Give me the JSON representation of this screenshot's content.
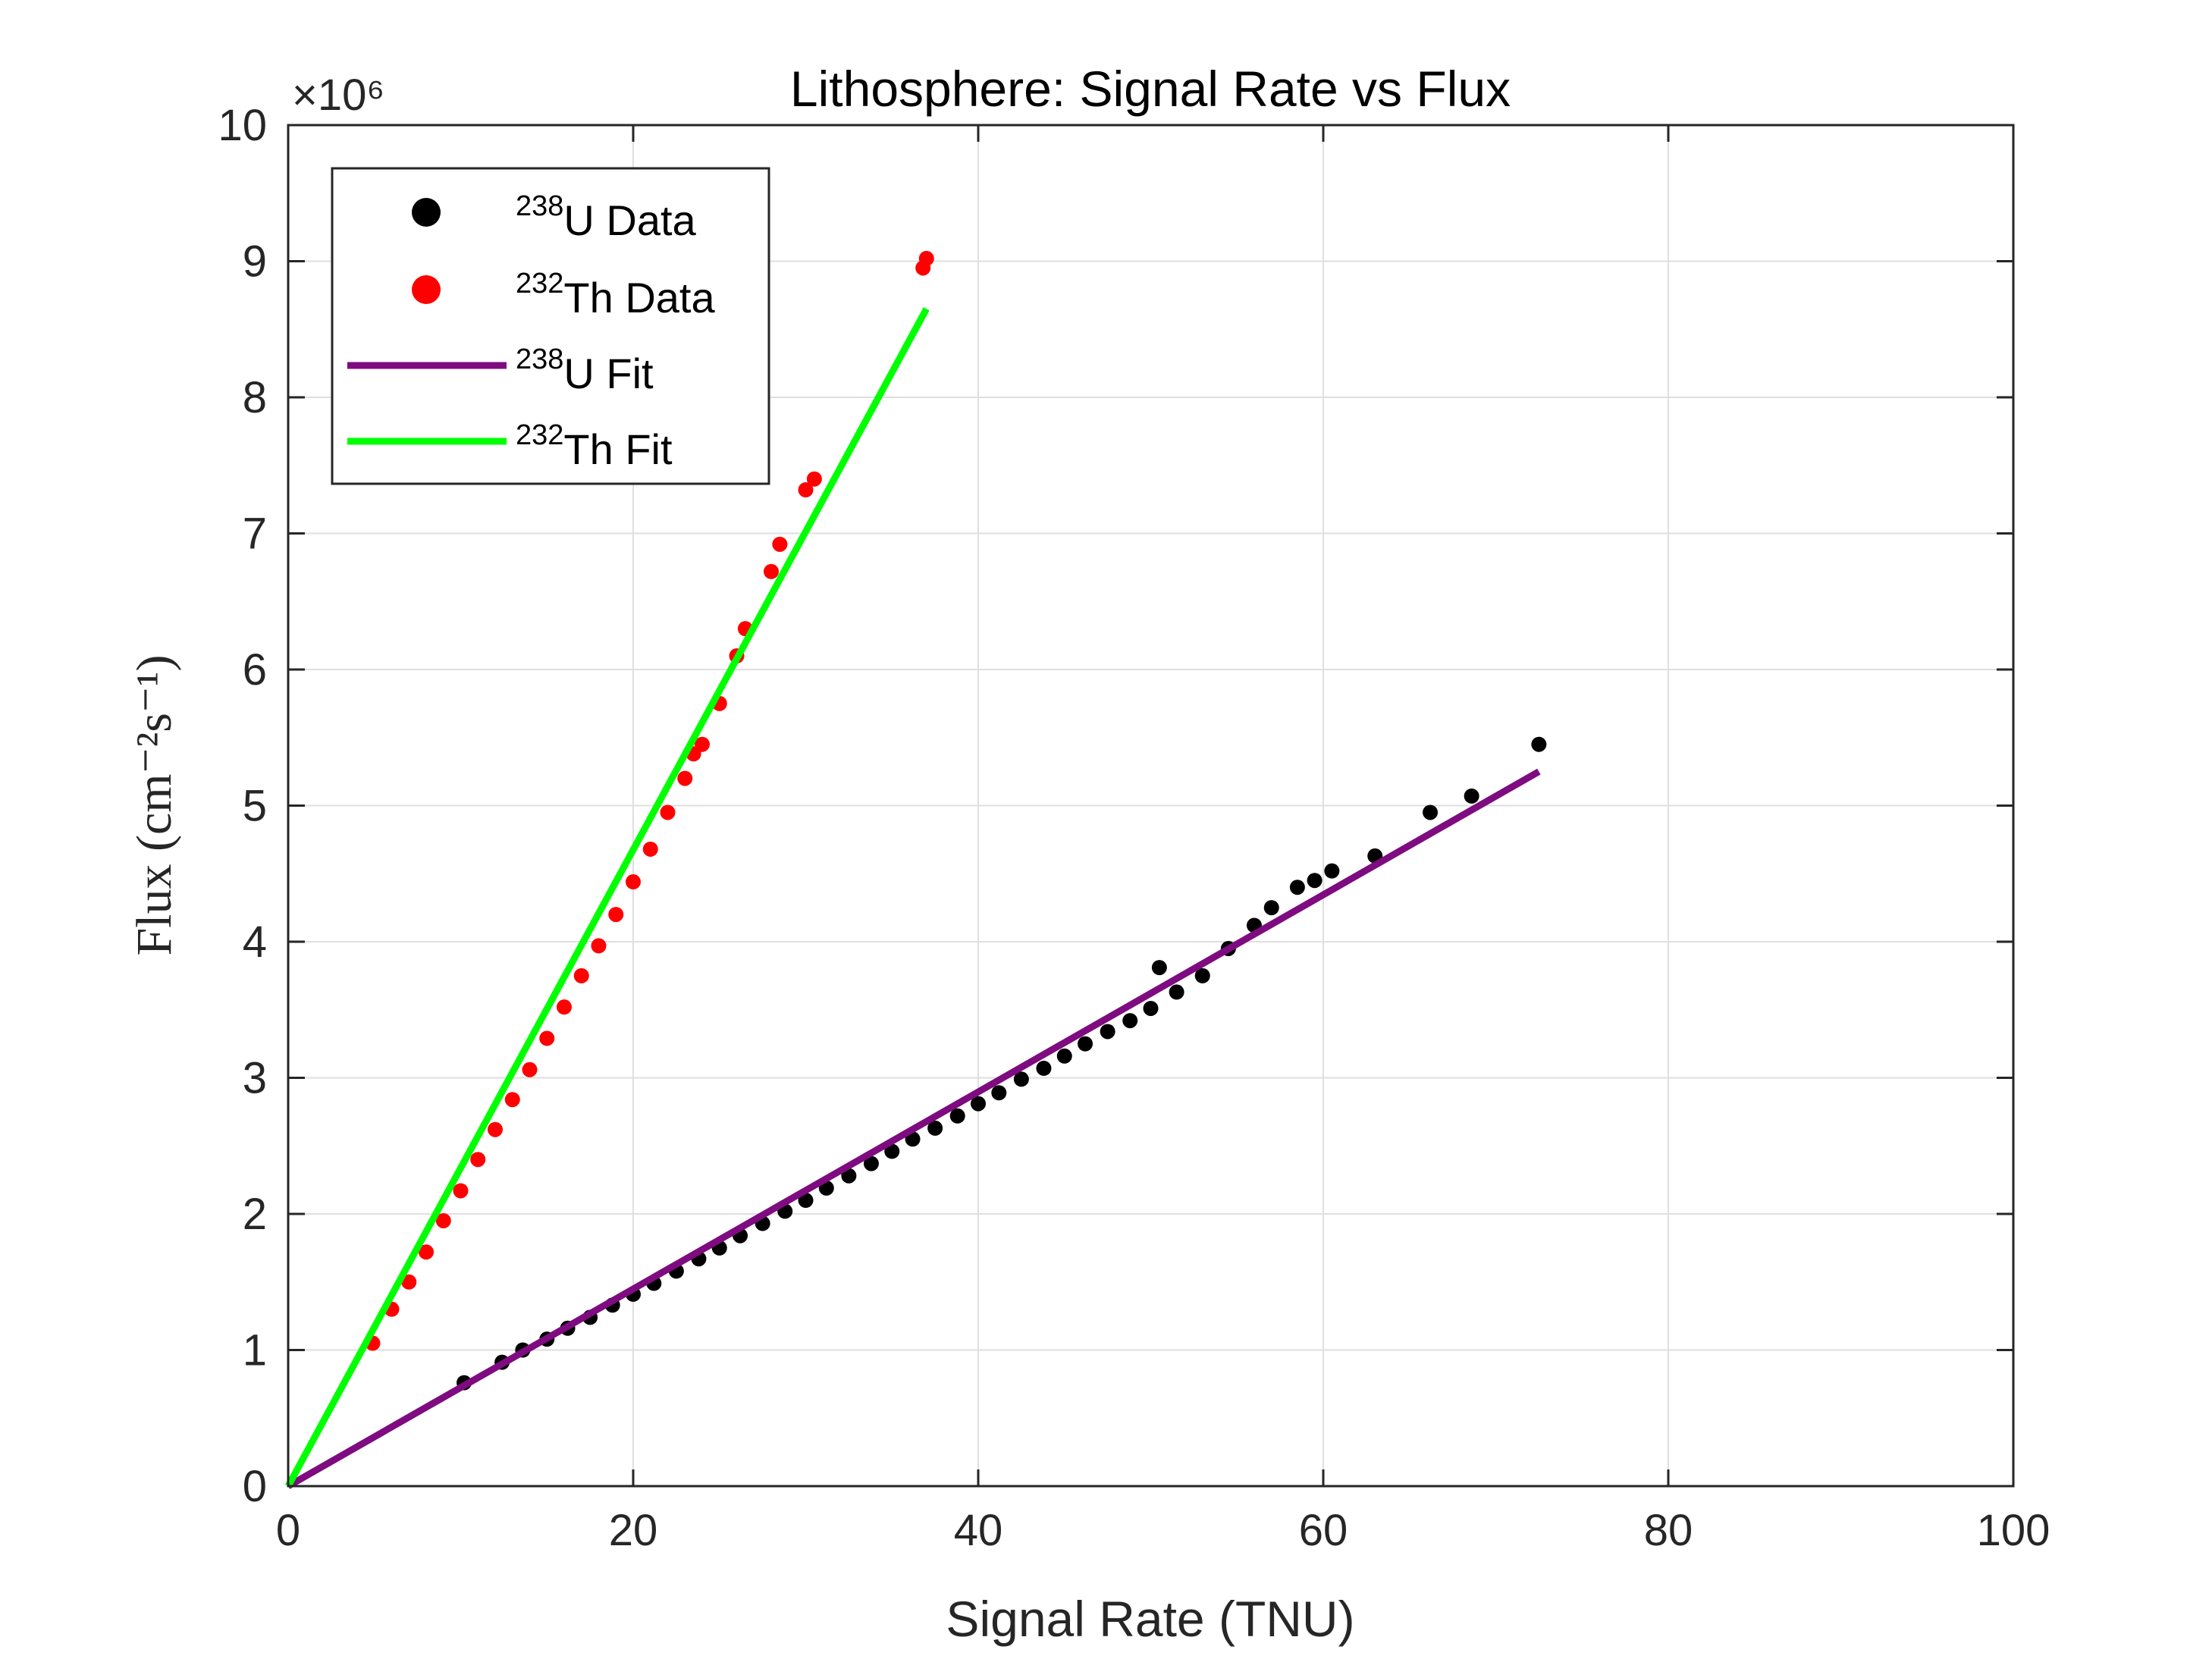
{
  "chart_data": {
    "type": "scatter",
    "title": "Lithosphere: Signal Rate vs Flux",
    "xlabel": "Signal Rate (TNU)",
    "ylabel": "Flux (cm⁻²s⁻¹)",
    "xlim": [
      0,
      100
    ],
    "ylim": [
      0,
      10
    ],
    "y_multiplier": "×10⁶",
    "xticks": [
      "0",
      "20",
      "40",
      "60",
      "80",
      "100"
    ],
    "yticks": [
      "0",
      "1",
      "2",
      "3",
      "4",
      "5",
      "6",
      "7",
      "8",
      "9",
      "10"
    ],
    "grid": true,
    "legend_position": "top-left",
    "series": [
      {
        "name": "238U Data",
        "legend_sup": "238",
        "legend_text": "U Data",
        "kind": "scatter",
        "color": "#000000",
        "points": [
          [
            10.2,
            0.76
          ],
          [
            12.4,
            0.91
          ],
          [
            13.6,
            1.0
          ],
          [
            15.0,
            1.08
          ],
          [
            16.2,
            1.16
          ],
          [
            17.5,
            1.24
          ],
          [
            18.8,
            1.33
          ],
          [
            20.0,
            1.41
          ],
          [
            21.2,
            1.49
          ],
          [
            22.5,
            1.58
          ],
          [
            23.8,
            1.67
          ],
          [
            25.0,
            1.75
          ],
          [
            26.2,
            1.84
          ],
          [
            27.5,
            1.93
          ],
          [
            28.8,
            2.02
          ],
          [
            30.0,
            2.1
          ],
          [
            31.2,
            2.19
          ],
          [
            32.5,
            2.28
          ],
          [
            33.8,
            2.37
          ],
          [
            35.0,
            2.46
          ],
          [
            36.2,
            2.55
          ],
          [
            37.5,
            2.63
          ],
          [
            38.8,
            2.72
          ],
          [
            40.0,
            2.81
          ],
          [
            41.2,
            2.89
          ],
          [
            42.5,
            2.99
          ],
          [
            43.8,
            3.07
          ],
          [
            45.0,
            3.16
          ],
          [
            46.2,
            3.25
          ],
          [
            47.5,
            3.34
          ],
          [
            48.8,
            3.42
          ],
          [
            50.0,
            3.51
          ],
          [
            50.5,
            3.81
          ],
          [
            51.5,
            3.63
          ],
          [
            53.0,
            3.75
          ],
          [
            54.5,
            3.95
          ],
          [
            56.0,
            4.12
          ],
          [
            57.0,
            4.25
          ],
          [
            58.5,
            4.4
          ],
          [
            59.5,
            4.45
          ],
          [
            60.5,
            4.52
          ],
          [
            63.0,
            4.63
          ],
          [
            66.2,
            4.95
          ],
          [
            68.6,
            5.07
          ],
          [
            72.5,
            5.45
          ]
        ]
      },
      {
        "name": "232Th Data",
        "legend_sup": "232",
        "legend_text": "Th Data",
        "kind": "scatter",
        "color": "#ff0000",
        "points": [
          [
            4.9,
            1.05
          ],
          [
            6.0,
            1.3
          ],
          [
            7.0,
            1.5
          ],
          [
            8.0,
            1.72
          ],
          [
            9.0,
            1.95
          ],
          [
            10.0,
            2.17
          ],
          [
            11.0,
            2.4
          ],
          [
            12.0,
            2.62
          ],
          [
            13.0,
            2.84
          ],
          [
            14.0,
            3.06
          ],
          [
            15.0,
            3.29
          ],
          [
            16.0,
            3.52
          ],
          [
            17.0,
            3.75
          ],
          [
            18.0,
            3.97
          ],
          [
            19.0,
            4.2
          ],
          [
            20.0,
            4.44
          ],
          [
            21.0,
            4.68
          ],
          [
            22.0,
            4.95
          ],
          [
            23.0,
            5.2
          ],
          [
            23.5,
            5.38
          ],
          [
            24.0,
            5.45
          ],
          [
            25.0,
            5.75
          ],
          [
            26.0,
            6.1
          ],
          [
            26.5,
            6.3
          ],
          [
            28.0,
            6.72
          ],
          [
            28.5,
            6.92
          ],
          [
            30.0,
            7.32
          ],
          [
            30.5,
            7.4
          ],
          [
            36.8,
            8.95
          ],
          [
            37.0,
            9.02
          ]
        ]
      },
      {
        "name": "238U Fit",
        "legend_sup": "238",
        "legend_text": "U Fit",
        "kind": "line",
        "color": "#7e0b80",
        "x": [
          0,
          72.5
        ],
        "y": [
          0,
          5.25
        ]
      },
      {
        "name": "232Th Fit",
        "legend_sup": "232",
        "legend_text": "Th Fit",
        "kind": "line",
        "color": "#00ff00",
        "x": [
          0,
          37.0
        ],
        "y": [
          0,
          8.65
        ]
      }
    ]
  }
}
